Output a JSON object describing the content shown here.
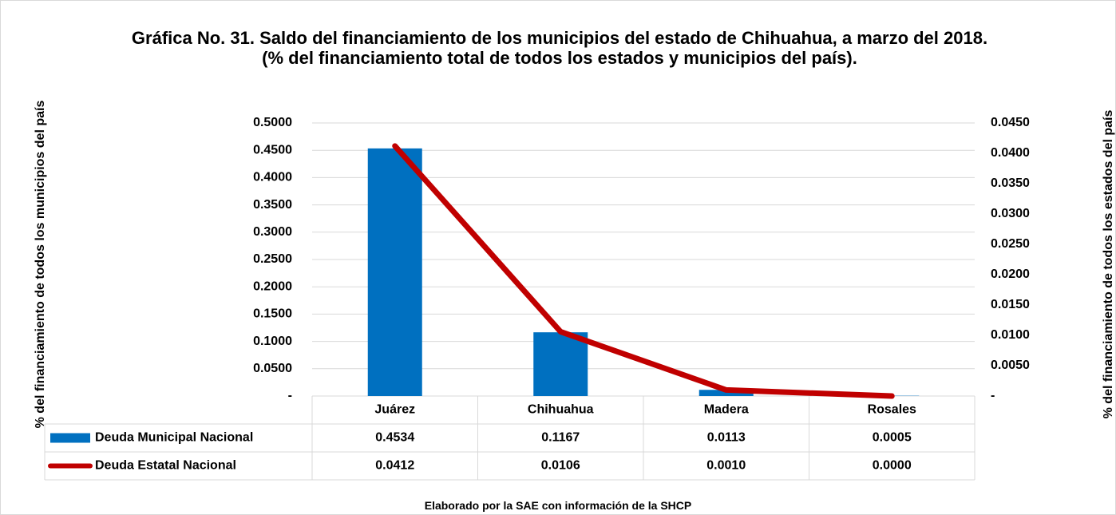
{
  "chart_data": {
    "type": "bar",
    "title": "Gráfica No. 31. Saldo del financiamiento de los municipios del estado de Chihuahua, a marzo  del 2018. (% del financiamiento total de todos los estados y municipios del país).",
    "ylabel": "% del financiamiento  de todos los municipios del país",
    "y2label": "% del financiamiento de todos los estados del país",
    "note": "Elaborado por la SAE con información de  la SHCP",
    "categories": [
      "Juárez",
      "Chihuahua",
      "Madera",
      "Rosales"
    ],
    "series": [
      {
        "name": "Deuda Municipal Nacional",
        "type": "bar",
        "color": "#0070c0",
        "values": [
          0.4534,
          0.1167,
          0.0113,
          0.0005
        ]
      },
      {
        "name": "Deuda Estatal Nacional",
        "type": "line",
        "axis": "y2",
        "color": "#c00000",
        "values": [
          0.0412,
          0.0106,
          0.001,
          0
        ],
        "value_labels": [
          "0.0412",
          "0.0106",
          "0.0010",
          "0.0000"
        ]
      }
    ],
    "ylim": [
      0,
      0.5
    ],
    "yticks": [
      {
        "value": 0,
        "label": "-"
      },
      {
        "value": 0.05,
        "label": "0.0500"
      },
      {
        "value": 0.1,
        "label": "0.1000"
      },
      {
        "value": 0.15,
        "label": "0.1500"
      },
      {
        "value": 0.2,
        "label": "0.2000"
      },
      {
        "value": 0.25,
        "label": "0.2500"
      },
      {
        "value": 0.3,
        "label": "0.3000"
      },
      {
        "value": 0.35,
        "label": "0.3500"
      },
      {
        "value": 0.4,
        "label": "0.4000"
      },
      {
        "value": 0.45,
        "label": "0.4500"
      },
      {
        "value": 0.5,
        "label": "0.5000"
      }
    ],
    "y2lim": [
      0,
      0.045
    ],
    "y2ticks": [
      {
        "value": 0,
        "label": "-"
      },
      {
        "value": 0.005,
        "label": "0.0050"
      },
      {
        "value": 0.01,
        "label": "0.0100"
      },
      {
        "value": 0.015,
        "label": "0.0150"
      },
      {
        "value": 0.02,
        "label": "0.0200"
      },
      {
        "value": 0.025,
        "label": "0.0250"
      },
      {
        "value": 0.03,
        "label": "0.0300"
      },
      {
        "value": 0.035,
        "label": "0.0350"
      },
      {
        "value": 0.04,
        "label": "0.0400"
      },
      {
        "value": 0.045,
        "label": "0.0450"
      }
    ],
    "grid": true,
    "data_table": true
  }
}
